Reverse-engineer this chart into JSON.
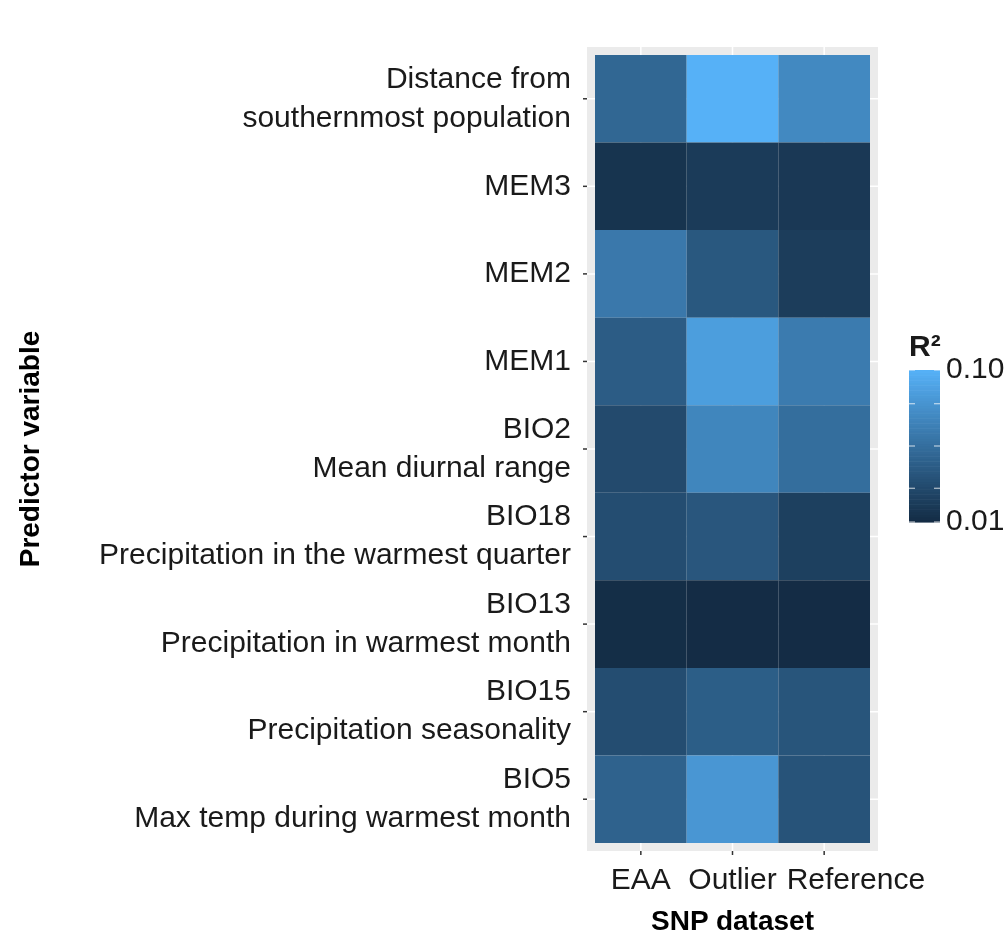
{
  "chart_data": {
    "type": "heatmap",
    "grid": true,
    "xlabel": "SNP dataset",
    "ylabel": "Predictor variable",
    "clabel": "R²",
    "categories": [
      "EAA",
      "Outlier",
      "Reference"
    ],
    "y_categories": [
      "Distance from\nsouthernmost population",
      "MEM3",
      "MEM2",
      "MEM1",
      "BIO2\nMean diurnal range",
      "BIO18\nPrecipitation in the warmest quarter",
      "BIO13\nPrecipitation in warmest month",
      "BIO15\nPrecipitation seasonality",
      "BIO5\nMax temp during warmest month"
    ],
    "cells": [
      [
        0.05,
        0.1,
        0.073
      ],
      [
        0.016,
        0.021,
        0.019
      ],
      [
        0.062,
        0.04,
        0.022
      ],
      [
        0.043,
        0.087,
        0.064
      ],
      [
        0.031,
        0.071,
        0.055
      ],
      [
        0.033,
        0.039,
        0.024
      ],
      [
        0.012,
        0.011,
        0.011
      ],
      [
        0.033,
        0.044,
        0.038
      ],
      [
        0.047,
        0.082,
        0.037
      ]
    ],
    "clim": [
      0.01,
      0.1
    ],
    "cticks": [
      {
        "value": 0.01,
        "label": "0.01"
      },
      {
        "value": 0.03,
        "label": null
      },
      {
        "value": 0.055,
        "label": null
      },
      {
        "value": 0.08,
        "label": null
      },
      {
        "value": 0.1,
        "label": "0.10"
      }
    ]
  }
}
